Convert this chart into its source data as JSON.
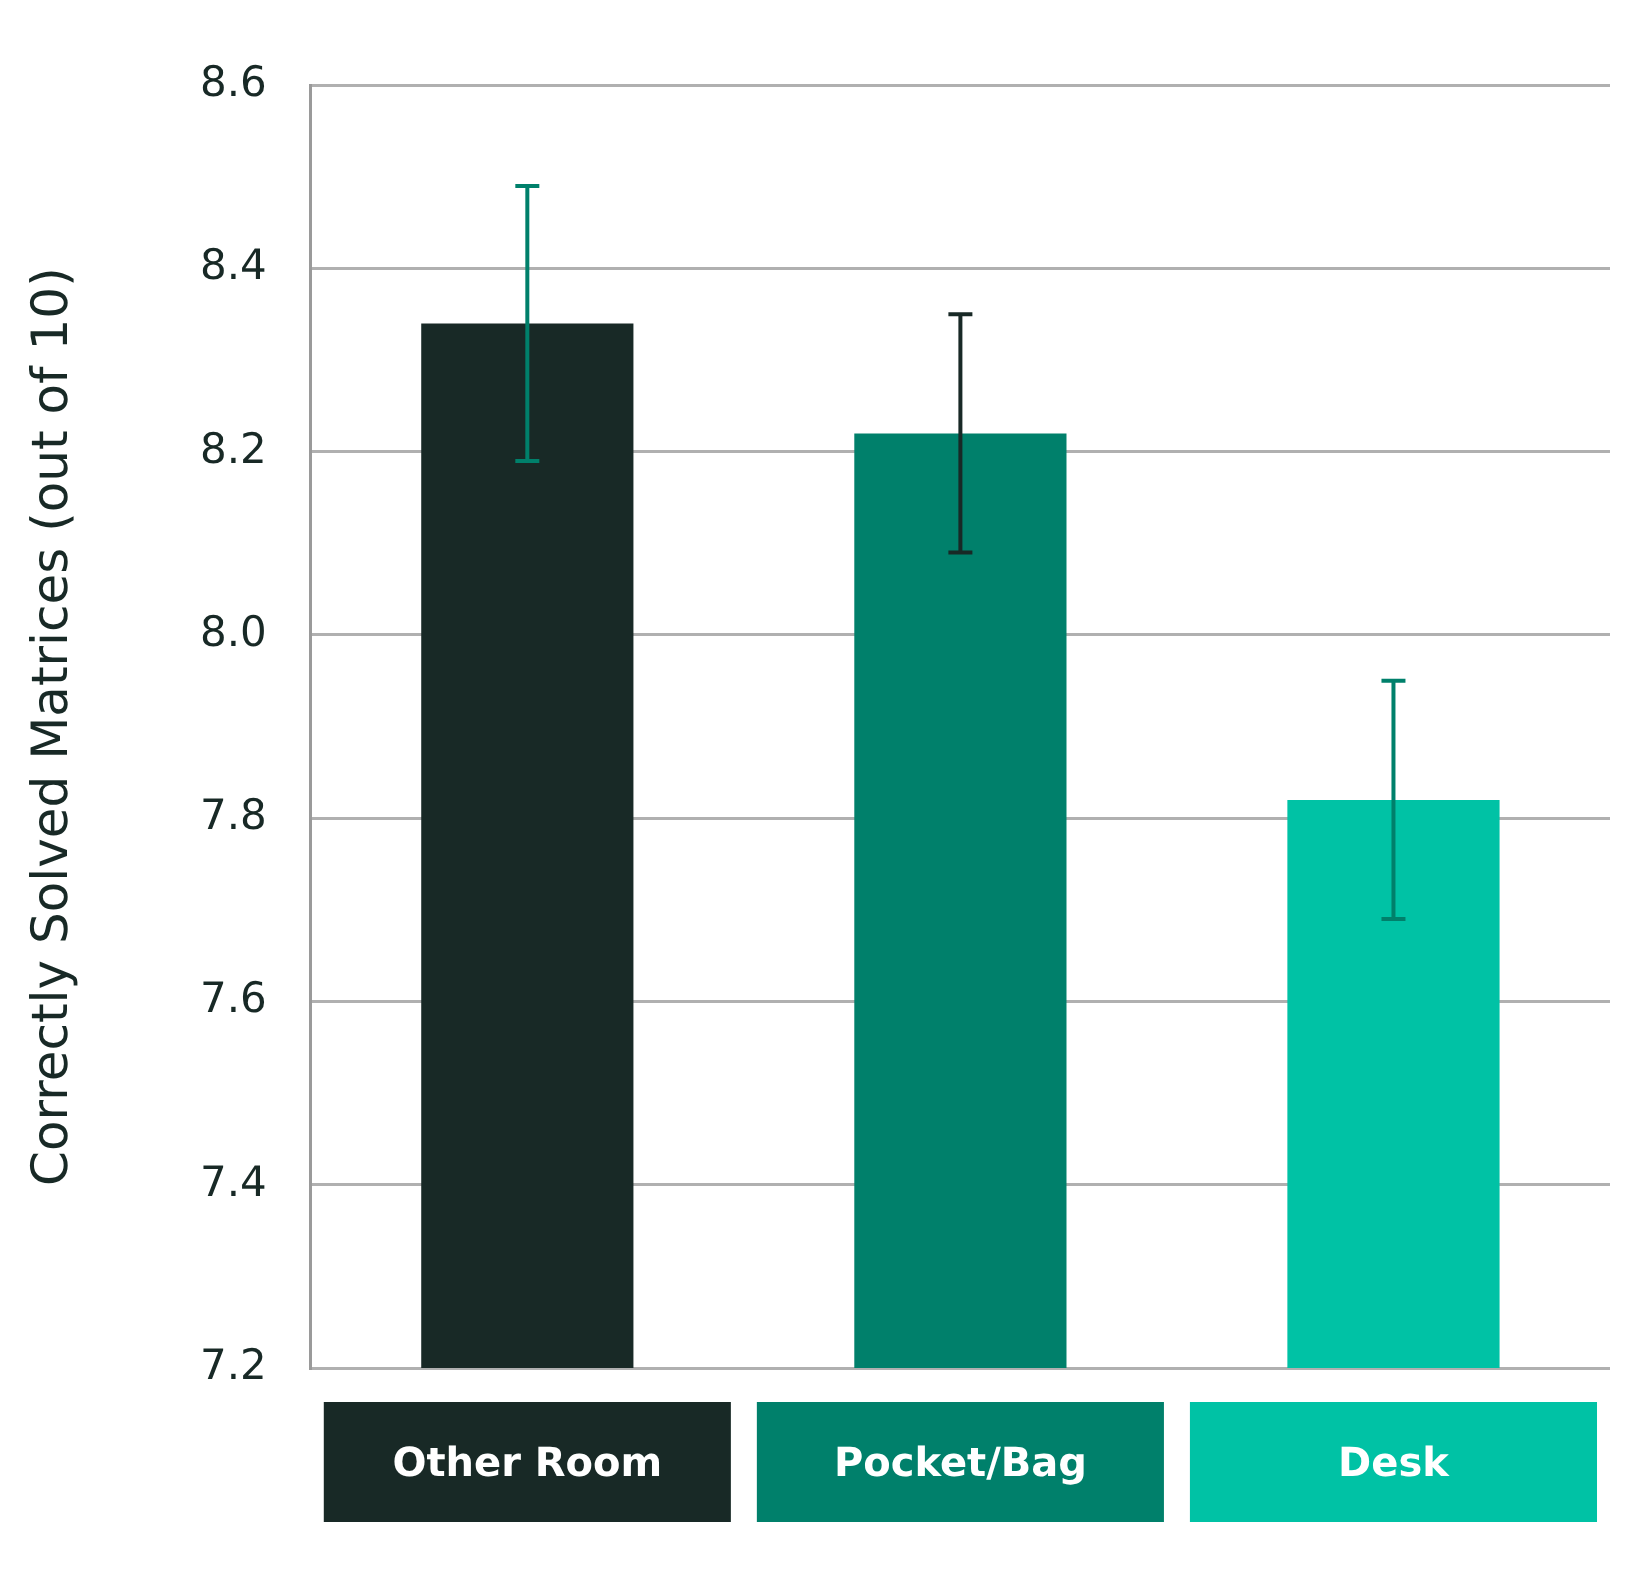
{
  "chart_data": {
    "type": "bar",
    "ylabel": "Correctly Solved Matrices (out of 10)",
    "categories": [
      "Other Room",
      "Pocket/Bag",
      "Desk"
    ],
    "values": [
      8.34,
      8.22,
      7.82
    ],
    "colors": [
      "#182926",
      "#00806b",
      "#00c2a5"
    ],
    "errors": [
      0.15,
      0.13,
      0.13
    ],
    "ylim": [
      7.2,
      8.6
    ],
    "yticks": [
      7.2,
      7.4,
      7.6,
      7.8,
      {
        "value": 8,
        "label": "8.0"
      },
      8.2,
      8.4,
      8.6
    ],
    "grid": "y",
    "legend": false
  }
}
